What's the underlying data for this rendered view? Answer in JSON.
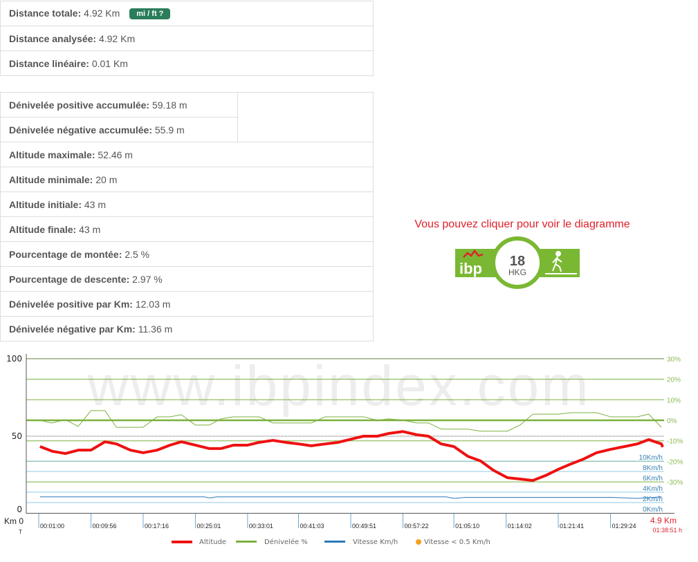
{
  "stats_top": [
    {
      "label": "Distance totale:",
      "value": "4.92 Km"
    },
    {
      "label": "Distance analysée:",
      "value": "4.92 Km"
    },
    {
      "label": "Distance linéaire:",
      "value": "0.01 Km"
    }
  ],
  "unit_button": "mi / ft ?",
  "stats_bottom": [
    {
      "label": "Dénivelée positive accumulée:",
      "value": "59.18 m"
    },
    {
      "label": "Dénivelée négative accumulée:",
      "value": "55.9 m"
    },
    {
      "label": "Altitude maximale:",
      "value": "52.46 m"
    },
    {
      "label": "Altitude minimale:",
      "value": "20 m"
    },
    {
      "label": "Altitude initiale:",
      "value": "43 m"
    },
    {
      "label": "Altitude finale:",
      "value": "43 m"
    },
    {
      "label": "Pourcentage de montée:",
      "value": "2.5 %"
    },
    {
      "label": "Pourcentage de descente:",
      "value": "2.97 %"
    },
    {
      "label": "Dénivelée positive par Km:",
      "value": "12.03 m"
    },
    {
      "label": "Dénivelée négative par Km:",
      "value": "11.36 m"
    }
  ],
  "click_message": "Vous pouvez cliquer pour voir le diagramme",
  "badge": {
    "logo": "ibp",
    "score": "18",
    "code": "HKG",
    "icon": "hiker-icon",
    "color": "#7ab833"
  },
  "chart_data": {
    "type": "line",
    "watermark": "www.ibpindex.com",
    "x_axis": {
      "label_km": "Km 0",
      "label_t": "T",
      "end_km": "4.9 Km",
      "end_time": "01:38:51 h",
      "range_km": [
        0,
        4.9
      ]
    },
    "time_ticks": [
      {
        "km": 0.0,
        "label": "00:01:00"
      },
      {
        "km": 0.41,
        "label": "00:09:56"
      },
      {
        "km": 0.82,
        "label": "00:17:16"
      },
      {
        "km": 1.23,
        "label": "00:25:01"
      },
      {
        "km": 1.64,
        "label": "00:33:01"
      },
      {
        "km": 2.04,
        "label": "00:41:03"
      },
      {
        "km": 2.45,
        "label": "00:49:51"
      },
      {
        "km": 2.86,
        "label": "00:57:22"
      },
      {
        "km": 3.26,
        "label": "01:05:10"
      },
      {
        "km": 3.67,
        "label": "01:14:02"
      },
      {
        "km": 4.08,
        "label": "01:21:41"
      },
      {
        "km": 4.49,
        "label": "01:29:24"
      }
    ],
    "altitude_axis": {
      "ticks": [
        "0",
        "50",
        "100"
      ],
      "range": [
        0,
        100
      ]
    },
    "grade_axis": {
      "ticks": [
        "30%",
        "20%",
        "10%",
        "0%",
        "-10%",
        "-20%",
        "-30%"
      ],
      "values": [
        30,
        20,
        10,
        0,
        -10,
        -20,
        -30
      ]
    },
    "speed_axis": {
      "ticks": [
        "10Km/h",
        "8Km/h",
        "6Km/h",
        "4Km/h",
        "2Km/h",
        "0Km/h"
      ],
      "values": [
        10,
        8,
        6,
        4,
        2,
        0
      ]
    },
    "series": [
      {
        "name": "Altitude",
        "color": "#ee1111",
        "km": [
          0.01,
          0.11,
          0.21,
          0.31,
          0.41,
          0.52,
          0.61,
          0.72,
          0.82,
          0.93,
          1.03,
          1.12,
          1.23,
          1.34,
          1.43,
          1.53,
          1.64,
          1.73,
          1.84,
          1.94,
          2.04,
          2.14,
          2.25,
          2.35,
          2.44,
          2.55,
          2.66,
          2.75,
          2.86,
          2.97,
          3.06,
          3.16,
          3.26,
          3.37,
          3.47,
          3.57,
          3.68,
          3.78,
          3.88,
          3.98,
          4.08,
          4.18,
          4.28,
          4.38,
          4.49,
          4.6,
          4.7,
          4.79,
          4.89,
          4.9
        ],
        "values": [
          43.3,
          40.2,
          38.8,
          41,
          41,
          46.4,
          45,
          41,
          39.3,
          41,
          44.2,
          46.4,
          44.2,
          42,
          42,
          44.2,
          44.2,
          46,
          47.3,
          46,
          45,
          43.8,
          45,
          46,
          47.8,
          50,
          50,
          51.8,
          53,
          50.9,
          50,
          45,
          43.3,
          37,
          34,
          28,
          23.2,
          22.3,
          21.4,
          24.6,
          28.6,
          32.1,
          35.3,
          39.3,
          41.5,
          43.3,
          45,
          47.8,
          45,
          43
        ]
      },
      {
        "name": "Dénivelée %",
        "color": "#7ab03c",
        "km": [
          0.01,
          0.1,
          0.21,
          0.31,
          0.41,
          0.52,
          0.61,
          0.82,
          0.93,
          1.03,
          1.12,
          1.23,
          1.34,
          1.43,
          1.53,
          1.73,
          1.84,
          2.14,
          2.25,
          2.44,
          2.55,
          2.66,
          2.75,
          2.86,
          2.97,
          3.06,
          3.16,
          3.37,
          3.47,
          3.68,
          3.78,
          3.88,
          4.08,
          4.18,
          4.38,
          4.49,
          4.7,
          4.79,
          4.89
        ],
        "values": [
          0,
          -1.3,
          0.3,
          -3,
          4.7,
          4.7,
          -3.4,
          -3.4,
          1.7,
          1.7,
          2.7,
          -2.3,
          -2.3,
          0.7,
          1.7,
          1.7,
          -1.3,
          -1.3,
          1.7,
          1.7,
          1.7,
          0,
          0.7,
          0,
          -1.3,
          -1.3,
          -4.3,
          -4.3,
          -5.3,
          -5.3,
          -2.3,
          3,
          3,
          3.7,
          3.7,
          1.7,
          1.7,
          3,
          -3.4
        ]
      },
      {
        "name": "Vitesse Km/h",
        "color": "#2a7ab8",
        "km": [
          0.01,
          1.3,
          1.34,
          1.4,
          1.5,
          3.2,
          3.26,
          3.35,
          4.5,
          4.6,
          4.7,
          4.89
        ],
        "values": [
          3.1,
          3.1,
          2.9,
          3.1,
          3.1,
          3.1,
          2.8,
          3.0,
          3.0,
          2.9,
          2.8,
          3.1
        ]
      },
      {
        "name": "Vitesse < 0.5 Km/h",
        "color": "#f5a020",
        "km": [],
        "values": []
      }
    ],
    "legend": {
      "position": "bottom"
    }
  }
}
